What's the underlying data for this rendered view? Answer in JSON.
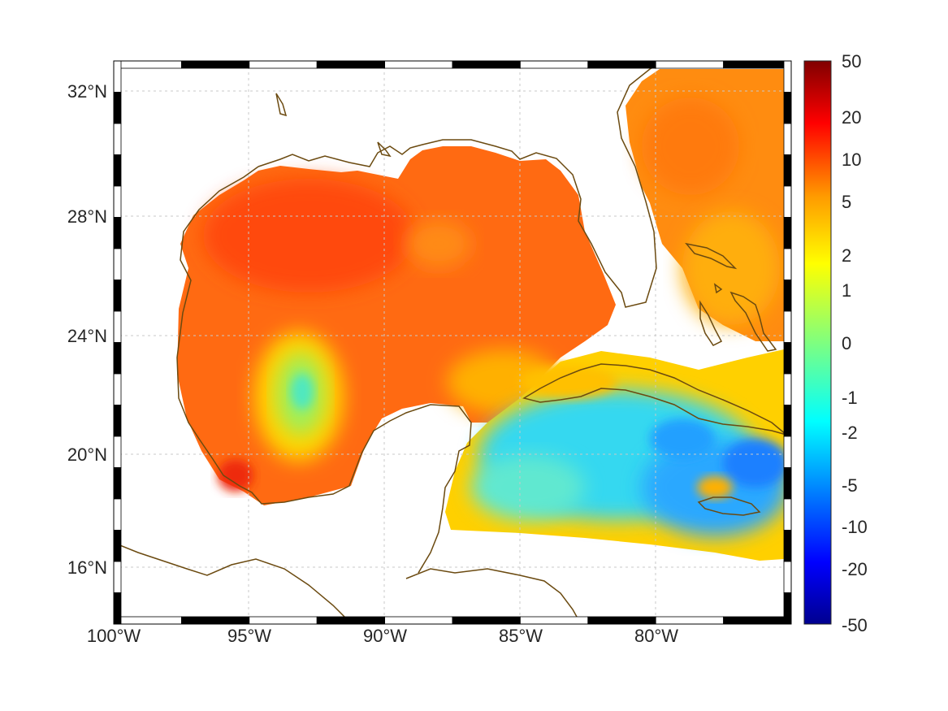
{
  "map": {
    "lat_labels": [
      "32°N",
      "28°N",
      "24°N",
      "20°N",
      "16°N"
    ],
    "lon_labels": [
      "100°W",
      "95°W",
      "90°W",
      "85°W",
      "80°W"
    ],
    "extent": {
      "lon": [
        -100,
        -75
      ],
      "lat": [
        14.5,
        32.9
      ]
    },
    "grid": true,
    "projection": "equirectangular",
    "coastline_color": "#6b4a10",
    "frame_style": "alternating black/white border"
  },
  "colorbar": {
    "ticks": [
      "50",
      "20",
      "10",
      "5",
      "2",
      "1",
      "0",
      "-1",
      "-2",
      "-5",
      "-10",
      "-20",
      "-50"
    ],
    "colormap": "jet",
    "scale": "symmetric log"
  }
}
